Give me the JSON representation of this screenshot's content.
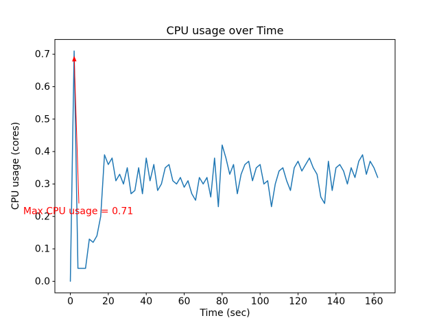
{
  "chart_data": {
    "type": "line",
    "title": "CPU usage over Time",
    "xlabel": "Time (sec)",
    "ylabel": "CPU usage (cores)",
    "line_color": "#1f77b4",
    "line_width": 1.5,
    "axis_color": "#000000",
    "background_color": "#ffffff",
    "grid": false,
    "legend": false,
    "xlim": [
      -8.15,
      171.15
    ],
    "ylim": [
      -0.0355,
      0.7455
    ],
    "xtick_values": [
      0,
      20,
      40,
      60,
      80,
      100,
      120,
      140,
      160
    ],
    "xtick_labels": [
      "0",
      "20",
      "40",
      "60",
      "80",
      "100",
      "120",
      "140",
      "160"
    ],
    "ytick_values": [
      0.0,
      0.1,
      0.2,
      0.3,
      0.4,
      0.5,
      0.6,
      0.7
    ],
    "ytick_labels": [
      "0.0",
      "0.1",
      "0.2",
      "0.3",
      "0.4",
      "0.5",
      "0.6",
      "0.7"
    ],
    "x": [
      0,
      2,
      4,
      6,
      8,
      10,
      12,
      14,
      16,
      18,
      20,
      22,
      24,
      26,
      28,
      30,
      32,
      34,
      36,
      38,
      40,
      42,
      44,
      46,
      48,
      50,
      52,
      54,
      56,
      58,
      60,
      62,
      64,
      66,
      68,
      70,
      72,
      74,
      76,
      78,
      80,
      82,
      84,
      86,
      88,
      90,
      92,
      94,
      96,
      98,
      100,
      102,
      104,
      106,
      108,
      110,
      112,
      114,
      116,
      118,
      120,
      122,
      124,
      126,
      128,
      130,
      132,
      134,
      136,
      138,
      140,
      142,
      144,
      146,
      148,
      150,
      152,
      154,
      156,
      158,
      160,
      162
    ],
    "y": [
      0.0,
      0.71,
      0.04,
      0.04,
      0.04,
      0.13,
      0.12,
      0.14,
      0.2,
      0.39,
      0.36,
      0.38,
      0.31,
      0.33,
      0.3,
      0.35,
      0.27,
      0.28,
      0.35,
      0.27,
      0.38,
      0.31,
      0.36,
      0.28,
      0.3,
      0.35,
      0.36,
      0.31,
      0.3,
      0.32,
      0.29,
      0.31,
      0.27,
      0.25,
      0.32,
      0.3,
      0.32,
      0.26,
      0.38,
      0.23,
      0.42,
      0.38,
      0.33,
      0.36,
      0.27,
      0.33,
      0.36,
      0.37,
      0.31,
      0.35,
      0.36,
      0.3,
      0.31,
      0.23,
      0.3,
      0.34,
      0.35,
      0.31,
      0.28,
      0.35,
      0.37,
      0.34,
      0.36,
      0.38,
      0.35,
      0.33,
      0.26,
      0.24,
      0.37,
      0.28,
      0.35,
      0.36,
      0.34,
      0.3,
      0.35,
      0.32,
      0.37,
      0.39,
      0.33,
      0.37,
      0.35,
      0.32
    ],
    "max_value": 0.71,
    "annotation": {
      "text": "Max CPU usage = 0.71",
      "color": "#ff0000",
      "arrow_start": [
        4.5,
        0.24
      ],
      "arrow_end": [
        2,
        0.695
      ],
      "text_x": -24.8,
      "text_y": 0.215
    }
  }
}
